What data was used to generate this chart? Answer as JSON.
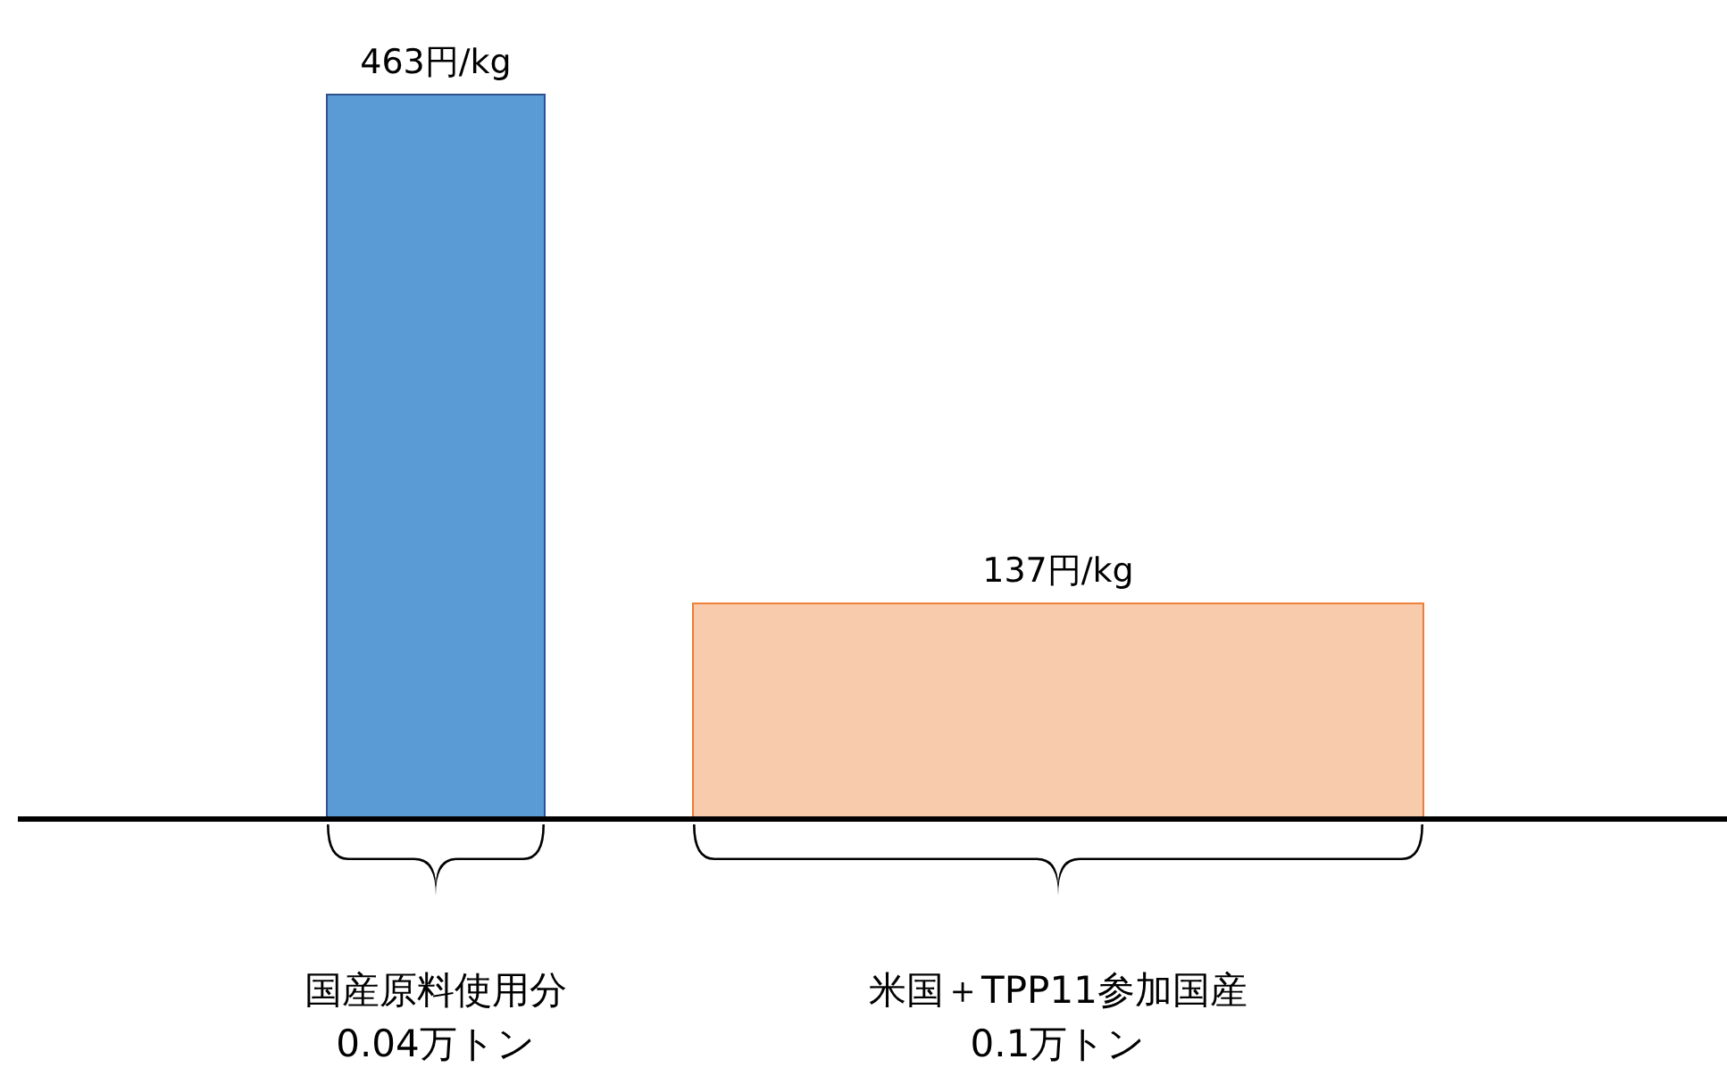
{
  "chart_data": {
    "type": "bar",
    "categories": [
      "国産原料使用分\n0.04万トン",
      "米国＋TPP11参加国産\n0.1万トン"
    ],
    "values": [
      463,
      137
    ],
    "colors": [
      "#5b9bd5",
      "#f8cbad"
    ],
    "value_labels": [
      "463円/kg",
      "137円/kg"
    ]
  }
}
